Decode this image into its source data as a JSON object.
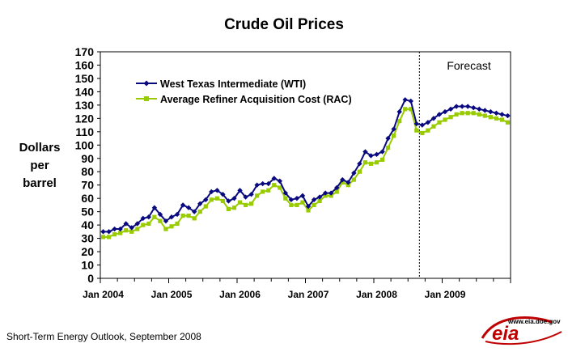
{
  "chart_data": {
    "type": "line",
    "title": "Crude Oil Prices",
    "ylabel": [
      "Dollars",
      "per",
      "barrel"
    ],
    "xlabel": "",
    "ylim": [
      0,
      170
    ],
    "yticks": [
      0,
      10,
      20,
      30,
      40,
      50,
      60,
      70,
      80,
      90,
      100,
      110,
      120,
      130,
      140,
      150,
      160,
      170
    ],
    "x_tick_labels": [
      "Jan 2004",
      "Jan 2005",
      "Jan 2006",
      "Jan 2007",
      "Jan 2008",
      "Jan 2009"
    ],
    "x_months_total": 72,
    "forecast_start_month": 56,
    "forecast_label": "Forecast",
    "legend_position": "top-left",
    "series": [
      {
        "name": "West Texas Intermediate (WTI)",
        "color": "#0a0a80",
        "marker": "diamond",
        "values": [
          35,
          35,
          37,
          37,
          41,
          38,
          41,
          45,
          46,
          53,
          48,
          43,
          46,
          48,
          55,
          53,
          50,
          56,
          59,
          65,
          66,
          63,
          58,
          60,
          66,
          61,
          63,
          70,
          71,
          71,
          75,
          73,
          64,
          59,
          60,
          62,
          54,
          59,
          61,
          64,
          64,
          68,
          74,
          72,
          79,
          86,
          95,
          92,
          93,
          95,
          105,
          112,
          125,
          134,
          133,
          116,
          115,
          117,
          120,
          123,
          125,
          127,
          129,
          129,
          129,
          128,
          127,
          126,
          125,
          124,
          123,
          122
        ]
      },
      {
        "name": "Average Refiner Acquisition Cost (RAC)",
        "color": "#99cc00",
        "marker": "square",
        "values": [
          31,
          31,
          33,
          34,
          36,
          35,
          37,
          40,
          41,
          46,
          43,
          37,
          39,
          41,
          47,
          47,
          45,
          50,
          54,
          59,
          60,
          58,
          52,
          53,
          57,
          55,
          56,
          62,
          65,
          66,
          70,
          68,
          60,
          55,
          55,
          57,
          51,
          55,
          58,
          62,
          62,
          65,
          72,
          70,
          74,
          80,
          87,
          86,
          87,
          89,
          98,
          107,
          118,
          127,
          127,
          111,
          109,
          111,
          114,
          117,
          119,
          121,
          123,
          124,
          124,
          124,
          123,
          122,
          121,
          120,
          119,
          117
        ]
      }
    ]
  },
  "footer": {
    "source": "Short-Term Energy Outlook, September 2008",
    "logo_url_text": "www.eia.doe.gov",
    "logo_word": "eia"
  }
}
